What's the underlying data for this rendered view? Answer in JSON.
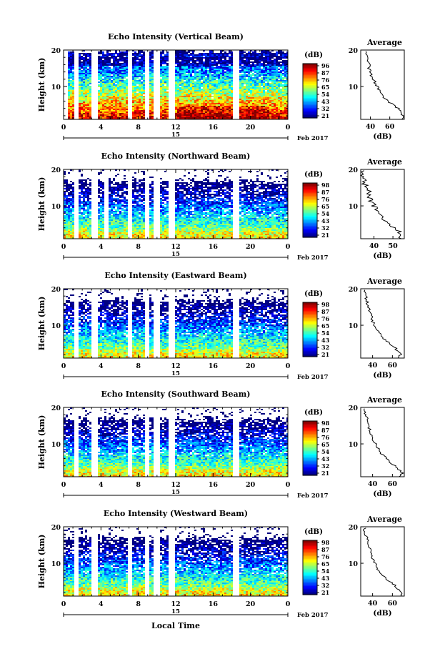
{
  "figure": {
    "xlabel": "Local Time",
    "date_label": "Feb 2017",
    "date_tick": "15",
    "avg_title": "Average",
    "avg_xlabel": "(dB)",
    "cb_unit": "(dB)",
    "ylabel": "Height (km)"
  },
  "chart_data": [
    {
      "type": "heatmap",
      "title": "Echo Intensity (Vertical Beam)",
      "ylabel": "Height (km)",
      "x_ticks": [
        "0",
        "4",
        "8",
        "12",
        "16",
        "20",
        "0"
      ],
      "xlim": [
        0,
        24
      ],
      "y_ticks": [
        "20",
        "10"
      ],
      "ylim": [
        1,
        20
      ],
      "colorbar_ticks": [
        "96",
        "87",
        "76",
        "65",
        "54",
        "43",
        "32",
        "21"
      ],
      "colorbar_range": [
        21,
        100
      ],
      "gaps_hours": [
        [
          0.2,
          0.4
        ],
        [
          1.2,
          1.5
        ],
        [
          3.2,
          3.5
        ],
        [
          6.9,
          7.2
        ],
        [
          8.8,
          9.1
        ],
        [
          9.8,
          10.2
        ],
        [
          11.4,
          11.7
        ],
        [
          18.3,
          18.6
        ]
      ],
      "profile": {
        "title": "Average",
        "xlabel": "(dB)",
        "x_ticks": [
          "40",
          "60"
        ],
        "xlim": [
          30,
          75
        ],
        "y_ticks": [
          "20",
          "10"
        ],
        "ylim": [
          1,
          20
        ],
        "height_km": [
          1.5,
          2.5,
          3.5,
          4.5,
          5.5,
          6.5,
          7.5,
          8.5,
          9.5,
          10.5,
          11.5,
          12.5,
          13.5,
          14.5,
          15.5,
          16.5,
          17.5,
          18.5,
          19.5
        ],
        "values_db": [
          72,
          74,
          71,
          69,
          63,
          58,
          54,
          52,
          49,
          47,
          45,
          43,
          41,
          40,
          38,
          39,
          37,
          38,
          36
        ]
      }
    },
    {
      "type": "heatmap",
      "title": "Echo Intensity (Northward Beam)",
      "ylabel": "Height (km)",
      "x_ticks": [
        "0",
        "4",
        "8",
        "12",
        "16",
        "20",
        "0"
      ],
      "xlim": [
        0,
        24
      ],
      "y_ticks": [
        "20",
        "10"
      ],
      "ylim": [
        1,
        20
      ],
      "colorbar_ticks": [
        "98",
        "87",
        "76",
        "65",
        "54",
        "43",
        "32",
        "21"
      ],
      "colorbar_range": [
        21,
        100
      ],
      "gaps_hours": [
        [
          1.2,
          1.5
        ],
        [
          3.2,
          3.5
        ],
        [
          4.5,
          4.6
        ],
        [
          6.9,
          7.2
        ],
        [
          8.8,
          9.1
        ],
        [
          9.8,
          10.2
        ],
        [
          11.4,
          11.7
        ],
        [
          18.3,
          18.6
        ]
      ],
      "profile": {
        "title": "Average",
        "xlabel": "(dB)",
        "x_ticks": [
          "40",
          "50"
        ],
        "xlim": [
          33,
          56
        ],
        "y_ticks": [
          "20",
          "10"
        ],
        "ylim": [
          1,
          20
        ],
        "height_km": [
          1.5,
          2.5,
          3.5,
          4.5,
          5.5,
          6.5,
          7.5,
          8.5,
          9.5,
          10.5,
          11.5,
          12.5,
          13.5,
          14.5,
          15.5,
          16.5,
          17.5,
          18.5,
          19.5
        ],
        "values_db": [
          54,
          55,
          53,
          51,
          48,
          46,
          44,
          43,
          41,
          40,
          39,
          38,
          37,
          37,
          36,
          35,
          35,
          34,
          34
        ]
      }
    },
    {
      "type": "heatmap",
      "title": "Echo Intensity (Eastward Beam)",
      "ylabel": "Height (km)",
      "x_ticks": [
        "0",
        "4",
        "8",
        "12",
        "16",
        "20",
        "0"
      ],
      "xlim": [
        0,
        24
      ],
      "y_ticks": [
        "20",
        "10"
      ],
      "ylim": [
        1,
        20
      ],
      "colorbar_ticks": [
        "98",
        "87",
        "76",
        "65",
        "54",
        "43",
        "32",
        "21"
      ],
      "colorbar_range": [
        21,
        100
      ],
      "gaps_hours": [
        [
          1.2,
          1.5
        ],
        [
          3.2,
          3.5
        ],
        [
          6.9,
          7.2
        ],
        [
          8.8,
          9.1
        ],
        [
          9.8,
          10.2
        ],
        [
          11.4,
          11.7
        ],
        [
          18.3,
          18.6
        ]
      ],
      "profile": {
        "title": "Average",
        "xlabel": "(dB)",
        "x_ticks": [
          "40",
          "60"
        ],
        "xlim": [
          28,
          72
        ],
        "y_ticks": [
          "20",
          "10"
        ],
        "ylim": [
          1,
          20
        ],
        "height_km": [
          1.5,
          2.5,
          3.5,
          4.5,
          5.5,
          6.5,
          7.5,
          8.5,
          9.5,
          10.5,
          11.5,
          12.5,
          13.5,
          14.5,
          15.5,
          16.5,
          17.5,
          18.5,
          19.5
        ],
        "values_db": [
          66,
          68,
          65,
          62,
          57,
          53,
          49,
          47,
          44,
          42,
          40,
          39,
          38,
          37,
          36,
          35,
          34,
          33,
          32
        ]
      }
    },
    {
      "type": "heatmap",
      "title": "Echo Intensity (Southward Beam)",
      "ylabel": "Height (km)",
      "x_ticks": [
        "0",
        "4",
        "8",
        "12",
        "16",
        "20",
        "0"
      ],
      "xlim": [
        0,
        24
      ],
      "y_ticks": [
        "20",
        "10"
      ],
      "ylim": [
        1,
        20
      ],
      "colorbar_ticks": [
        "98",
        "87",
        "76",
        "65",
        "54",
        "43",
        "32",
        "21"
      ],
      "colorbar_range": [
        21,
        100
      ],
      "gaps_hours": [
        [
          1.2,
          1.5
        ],
        [
          3.2,
          3.5
        ],
        [
          6.9,
          7.2
        ],
        [
          8.8,
          9.1
        ],
        [
          9.8,
          10.2
        ],
        [
          11.4,
          11.7
        ],
        [
          18.3,
          18.6
        ]
      ],
      "profile": {
        "title": "Average",
        "xlabel": "(dB)",
        "x_ticks": [
          "40",
          "60"
        ],
        "xlim": [
          28,
          72
        ],
        "y_ticks": [
          "20",
          "10"
        ],
        "ylim": [
          1,
          20
        ],
        "height_km": [
          1.5,
          2.5,
          3.5,
          4.5,
          5.5,
          6.5,
          7.5,
          8.5,
          9.5,
          10.5,
          11.5,
          12.5,
          13.5,
          14.5,
          15.5,
          16.5,
          17.5,
          18.5,
          19.5
        ],
        "values_db": [
          68,
          70,
          66,
          63,
          58,
          54,
          50,
          47,
          45,
          43,
          41,
          39,
          38,
          37,
          36,
          35,
          34,
          33,
          32
        ]
      }
    },
    {
      "type": "heatmap",
      "title": "Echo Intensity (Westward Beam)",
      "ylabel": "Height (km)",
      "x_ticks": [
        "0",
        "4",
        "8",
        "12",
        "16",
        "20",
        "0"
      ],
      "xlim": [
        0,
        24
      ],
      "y_ticks": [
        "20",
        "10"
      ],
      "ylim": [
        1,
        20
      ],
      "colorbar_ticks": [
        "98",
        "87",
        "76",
        "65",
        "54",
        "43",
        "32",
        "21"
      ],
      "colorbar_range": [
        21,
        100
      ],
      "gaps_hours": [
        [
          1.2,
          1.5
        ],
        [
          3.2,
          3.5
        ],
        [
          6.9,
          7.2
        ],
        [
          8.8,
          9.1
        ],
        [
          9.8,
          10.2
        ],
        [
          11.4,
          11.7
        ],
        [
          18.3,
          18.6
        ]
      ],
      "profile": {
        "title": "Average",
        "xlabel": "(dB)",
        "x_ticks": [
          "40",
          "60"
        ],
        "xlim": [
          28,
          72
        ],
        "y_ticks": [
          "20",
          "10"
        ],
        "ylim": [
          1,
          20
        ],
        "height_km": [
          1.5,
          2.5,
          3.5,
          4.5,
          5.5,
          6.5,
          7.5,
          8.5,
          9.5,
          10.5,
          11.5,
          12.5,
          13.5,
          14.5,
          15.5,
          16.5,
          17.5,
          18.5,
          19.5
        ],
        "values_db": [
          68,
          70,
          66,
          62,
          57,
          53,
          49,
          46,
          44,
          42,
          40,
          39,
          38,
          37,
          36,
          35,
          34,
          33,
          32
        ]
      }
    }
  ]
}
